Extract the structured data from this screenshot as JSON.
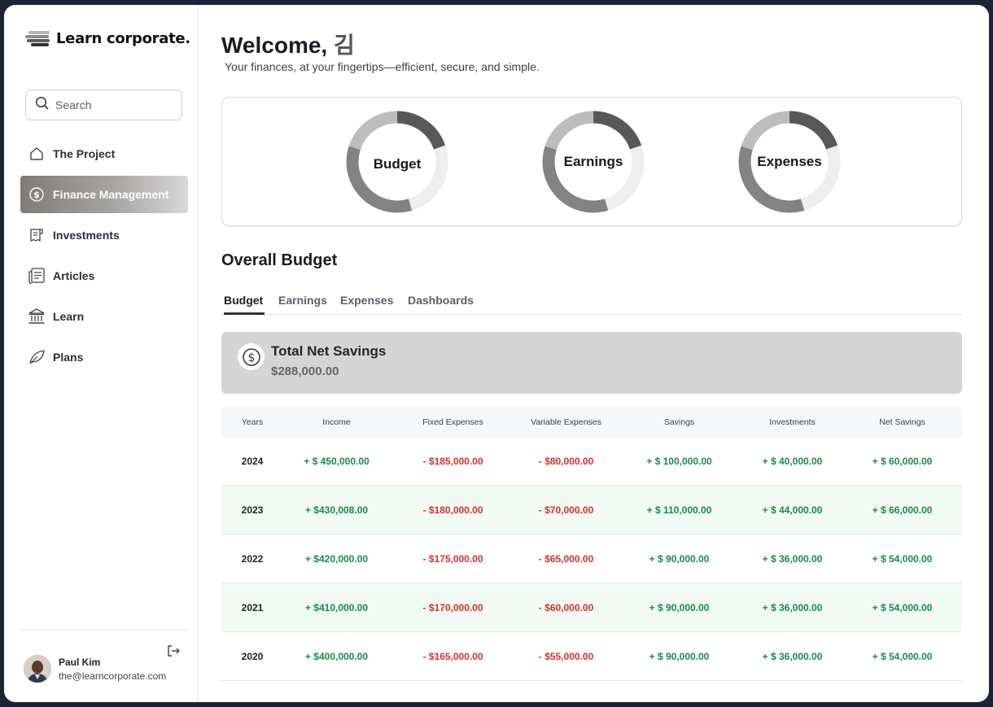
{
  "brand": {
    "name": "Learn corporate."
  },
  "search": {
    "placeholder": "Search"
  },
  "sidebar": {
    "items": [
      {
        "label": "The Project",
        "icon": "home-icon"
      },
      {
        "label": "Finance Management",
        "icon": "dollar-circle-icon",
        "active": true
      },
      {
        "label": "Investments",
        "icon": "receipt-icon"
      },
      {
        "label": "Articles",
        "icon": "newspaper-icon"
      },
      {
        "label": "Learn",
        "icon": "bank-icon"
      },
      {
        "label": "Plans",
        "icon": "leaf-icon"
      }
    ]
  },
  "user": {
    "name": "Paul Kim",
    "email": "the@learncorporate.com"
  },
  "header": {
    "welcome": "Welcome,",
    "user_name": "김",
    "subtitle": "Your finances, at your fingertips—efficient, secure, and simple."
  },
  "donuts": [
    {
      "label": "Budget"
    },
    {
      "label": "Earnings"
    },
    {
      "label": "Expenses"
    }
  ],
  "overall": {
    "title": "Overall Budget",
    "tabs": [
      "Budget",
      "Earnings",
      "Expenses",
      "Dashboards"
    ],
    "active_tab": "Budget"
  },
  "net_savings": {
    "title": "Total Net Savings",
    "value": "$288,000.00"
  },
  "table": {
    "headers": [
      "Years",
      "Income",
      "Fixed Expenses",
      "Variable Expenses",
      "Savings",
      "Investments",
      "Net Savings"
    ],
    "rows": [
      [
        "2024",
        "+ $ 450,000.00",
        "- $185,000.00",
        "- $80,000.00",
        "+ $ 100,000.00",
        "+ $ 40,000.00",
        "+ $ 60,000.00"
      ],
      [
        "2023",
        "+ $430,008.00",
        "- $180,000.00",
        "- $70,000.00",
        "+ $ 110,000.00",
        "+ $ 44,000.00",
        "+ $ 66,000.00"
      ],
      [
        "2022",
        "+ $420,000.00",
        "- $175,000.00",
        "- $65,000.00",
        "+ $ 90,000.00",
        "+ $ 36,000.00",
        "+ $ 54,000.00"
      ],
      [
        "2021",
        "+ $410,000.00",
        "- $170,000.00",
        "- $60,000.00",
        "+ $ 90,000.00",
        "+ $ 36,000.00",
        "+ $ 54,000.00"
      ],
      [
        "2020",
        "+ $400,000.00",
        "- $165,000.00",
        "- $55,000.00",
        "+ $ 90,000.00",
        "+ $ 36,000.00",
        "+ $ 54,000.00"
      ]
    ]
  },
  "colors": {
    "positive": "#1a8a48",
    "negative": "#e02d2d",
    "alt_row": "#f1fbf4",
    "donut_dark": "#585858",
    "donut_mid": "#838383",
    "donut_light": "#bdbdbd",
    "donut_track": "#eeeeee"
  }
}
